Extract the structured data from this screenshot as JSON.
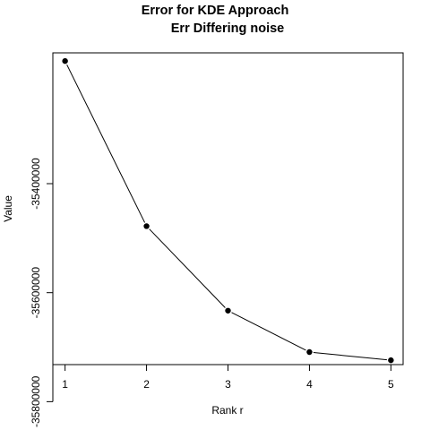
{
  "chart_data": {
    "type": "line",
    "title": "Error for KDE Approach",
    "subtitle": "Err Differing noise",
    "xlabel": "Rank r",
    "ylabel": "Value",
    "x": [
      1,
      2,
      3,
      4,
      5
    ],
    "series": [
      {
        "values": [
          -35175000,
          -35478000,
          -35633000,
          -35709000,
          -35724000
        ]
      }
    ],
    "xticks": [
      1,
      2,
      3,
      4,
      5
    ],
    "yticks": [
      -35400000,
      -35600000,
      -35800000
    ],
    "ytick_labels": [
      "-35400000",
      "-35600000",
      "-35800000"
    ],
    "xlim": [
      0.85,
      5.15
    ],
    "ylim": [
      -35732000,
      -35160000
    ],
    "grid": false,
    "legend": "none",
    "colors": {
      "line": "#000000",
      "point": "#000000"
    }
  }
}
